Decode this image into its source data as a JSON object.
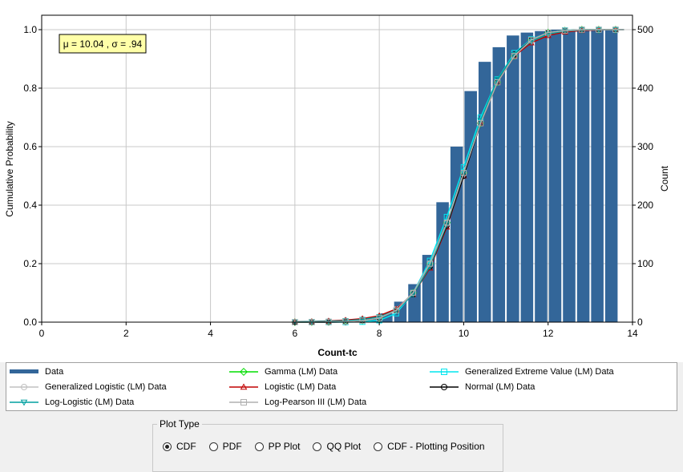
{
  "chart_data": {
    "type": "bar+line",
    "annotation": "μ = 10.04 , σ = .94",
    "xlabel": "Count-tc",
    "ylabel": "Cumulative Probability",
    "y2label": "Count",
    "xlim": [
      0,
      14
    ],
    "ylim": [
      0,
      1.0
    ],
    "y2lim": [
      0,
      500
    ],
    "xticks": [
      "0",
      "2",
      "4",
      "6",
      "8",
      "10",
      "12",
      "14"
    ],
    "yticks": [
      "0.0",
      "0.2",
      "0.4",
      "0.6",
      "0.8",
      "1.0"
    ],
    "y2ticks": [
      "0",
      "100",
      "200",
      "300",
      "400",
      "500"
    ],
    "grid": true,
    "bars": {
      "name": "Data",
      "bin_width": 0.333,
      "bin_left": [
        6.0,
        6.333,
        6.667,
        7.0,
        7.333,
        7.667,
        8.0,
        8.333,
        8.667,
        9.0,
        9.333,
        9.667,
        10.0,
        10.333,
        10.667,
        11.0,
        11.333,
        11.667,
        12.0,
        12.333,
        12.667,
        13.0,
        13.333
      ],
      "probability": [
        0.001,
        0.002,
        0.003,
        0.005,
        0.008,
        0.015,
        0.03,
        0.07,
        0.13,
        0.23,
        0.41,
        0.6,
        0.79,
        0.89,
        0.94,
        0.98,
        0.99,
        0.995,
        1.0,
        1.0,
        1.0,
        1.0,
        1.0
      ]
    },
    "series": [
      {
        "name": "Gamma (LM) Data",
        "color": "#00dd00",
        "marker": "diamond",
        "x": [
          6.0,
          6.4,
          6.8,
          7.2,
          7.6,
          8.0,
          8.4,
          8.8,
          9.2,
          9.6,
          10.0,
          10.4,
          10.8,
          11.2,
          11.6,
          12.0,
          12.4,
          12.8,
          13.2,
          13.6,
          13.8
        ],
        "values": [
          0.0,
          0.0,
          0.001,
          0.002,
          0.005,
          0.014,
          0.04,
          0.1,
          0.2,
          0.34,
          0.51,
          0.68,
          0.82,
          0.91,
          0.965,
          0.99,
          0.997,
          1.0,
          1.0,
          1.0,
          1.0
        ]
      },
      {
        "name": "Generalized Extreme Value (LM) Data",
        "color": "#00e5ee",
        "marker": "square",
        "x": [
          6.0,
          6.4,
          6.8,
          7.2,
          7.6,
          8.0,
          8.4,
          8.8,
          9.2,
          9.6,
          10.0,
          10.4,
          10.8,
          11.2,
          11.6,
          12.0,
          12.4,
          12.8,
          13.2,
          13.6,
          13.8
        ],
        "values": [
          0.0,
          0.0,
          0.0,
          0.0,
          0.001,
          0.006,
          0.03,
          0.1,
          0.21,
          0.36,
          0.53,
          0.7,
          0.83,
          0.92,
          0.967,
          0.99,
          0.998,
          1.0,
          1.0,
          1.0,
          1.0
        ]
      },
      {
        "name": "Generalized Logistic (LM) Data",
        "color": "#c0c0c0",
        "marker": "circle",
        "x": [
          6.0,
          6.4,
          6.8,
          7.2,
          7.6,
          8.0,
          8.4,
          8.8,
          9.2,
          9.6,
          10.0,
          10.4,
          10.8,
          11.2,
          11.6,
          12.0,
          12.4,
          12.8,
          13.2,
          13.6,
          13.8
        ],
        "values": [
          0.001,
          0.002,
          0.004,
          0.006,
          0.01,
          0.02,
          0.045,
          0.1,
          0.2,
          0.34,
          0.51,
          0.68,
          0.82,
          0.91,
          0.96,
          0.985,
          0.995,
          0.999,
          1.0,
          1.0,
          1.0
        ]
      },
      {
        "name": "Logistic (LM) Data",
        "color": "#c00000",
        "marker": "triangle-up",
        "x": [
          6.0,
          6.4,
          6.8,
          7.2,
          7.6,
          8.0,
          8.4,
          8.8,
          9.2,
          9.6,
          10.0,
          10.4,
          10.8,
          11.2,
          11.6,
          12.0,
          12.4,
          12.8,
          13.2,
          13.6,
          13.8
        ],
        "values": [
          0.001,
          0.002,
          0.004,
          0.007,
          0.012,
          0.022,
          0.045,
          0.095,
          0.185,
          0.325,
          0.5,
          0.68,
          0.82,
          0.91,
          0.955,
          0.98,
          0.992,
          0.997,
          0.999,
          1.0,
          1.0
        ]
      },
      {
        "name": "Normal (LM) Data",
        "color": "#000000",
        "marker": "circle",
        "x": [
          6.0,
          6.4,
          6.8,
          7.2,
          7.6,
          8.0,
          8.4,
          8.8,
          9.2,
          9.6,
          10.0,
          10.4,
          10.8,
          11.2,
          11.6,
          12.0,
          12.4,
          12.8,
          13.2,
          13.6,
          13.8
        ],
        "values": [
          0.0,
          0.0,
          0.0,
          0.001,
          0.005,
          0.015,
          0.04,
          0.095,
          0.19,
          0.33,
          0.5,
          0.68,
          0.82,
          0.915,
          0.965,
          0.99,
          0.997,
          1.0,
          1.0,
          1.0,
          1.0
        ]
      },
      {
        "name": "Log-Logistic (LM) Data",
        "color": "#00a0a0",
        "marker": "triangle-down",
        "x": [
          6.0,
          6.4,
          6.8,
          7.2,
          7.6,
          8.0,
          8.4,
          8.8,
          9.2,
          9.6,
          10.0,
          10.4,
          10.8,
          11.2,
          11.6,
          12.0,
          12.4,
          12.8,
          13.2,
          13.6,
          13.8
        ],
        "values": [
          0.001,
          0.002,
          0.003,
          0.005,
          0.009,
          0.018,
          0.04,
          0.095,
          0.19,
          0.335,
          0.51,
          0.69,
          0.83,
          0.915,
          0.96,
          0.985,
          0.995,
          0.999,
          1.0,
          1.0,
          1.0
        ]
      },
      {
        "name": "Log-Pearson III (LM) Data",
        "color": "#b0b0b0",
        "marker": "square",
        "x": [
          6.0,
          6.4,
          6.8,
          7.2,
          7.6,
          8.0,
          8.4,
          8.8,
          9.2,
          9.6,
          10.0,
          10.4,
          10.8,
          11.2,
          11.6,
          12.0,
          12.4,
          12.8,
          13.2,
          13.6,
          13.8
        ],
        "values": [
          0.0,
          0.0,
          0.001,
          0.002,
          0.005,
          0.014,
          0.04,
          0.1,
          0.2,
          0.34,
          0.51,
          0.68,
          0.82,
          0.91,
          0.965,
          0.99,
          0.997,
          1.0,
          1.0,
          1.0,
          1.0
        ]
      }
    ],
    "marker_x": [
      6.0,
      6.4,
      6.8,
      7.2,
      7.6,
      8.0,
      8.4,
      8.8,
      9.2,
      9.6,
      10.0,
      10.4,
      10.8,
      11.2,
      11.6,
      12.0,
      12.4,
      12.8,
      13.2,
      13.6
    ]
  },
  "legend": {
    "items": [
      {
        "label": "Data",
        "color": "#336699",
        "style": "bar"
      },
      {
        "label": "Gamma (LM) Data",
        "color": "#00dd00",
        "style": "diamond"
      },
      {
        "label": "Generalized Extreme Value (LM) Data",
        "color": "#00e5ee",
        "style": "square"
      },
      {
        "label": "Generalized Logistic (LM) Data",
        "color": "#c0c0c0",
        "style": "circle"
      },
      {
        "label": "Logistic (LM) Data",
        "color": "#c00000",
        "style": "triangle-up"
      },
      {
        "label": "Normal (LM) Data",
        "color": "#000000",
        "style": "circle"
      },
      {
        "label": "Log-Logistic (LM) Data",
        "color": "#00a0a0",
        "style": "triangle-down"
      },
      {
        "label": "Log-Pearson III (LM) Data",
        "color": "#b0b0b0",
        "style": "square"
      }
    ]
  },
  "plot_type": {
    "title": "Plot Type",
    "options": [
      {
        "label": "CDF",
        "checked": true
      },
      {
        "label": "PDF",
        "checked": false
      },
      {
        "label": "PP Plot",
        "checked": false
      },
      {
        "label": "QQ Plot",
        "checked": false
      },
      {
        "label": "CDF - Plotting Position",
        "checked": false
      }
    ]
  }
}
